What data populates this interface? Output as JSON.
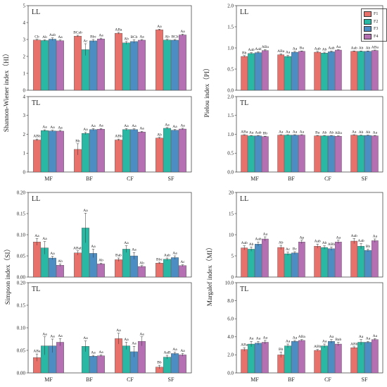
{
  "colors": {
    "F1": "#e8716c",
    "F2": "#29b8a4",
    "F3": "#4c8ec3",
    "F4": "#b570b4"
  },
  "legend": {
    "items": [
      "F1",
      "F2",
      "F3",
      "F4"
    ],
    "placement": "top-right"
  },
  "axis_labels": {
    "shannon": "Shannon-Wiener index（HI）",
    "pielou": "Pielou index（PI）",
    "simpson": "Simpson index（SI）",
    "margalef": "Margalef index（MI）"
  },
  "chart_data": [
    {
      "id": "hi-ll",
      "type": "bar",
      "panel_label": "LL",
      "categories": [
        "MF",
        "BF",
        "CF",
        "SF"
      ],
      "ylim": [
        0,
        5
      ],
      "yticks": [
        "0",
        "1",
        "2",
        "3",
        "4",
        "5"
      ],
      "show_xlabels": false,
      "series": [
        {
          "name": "F1",
          "values": [
            2.97,
            3.2,
            3.37,
            3.57
          ],
          "errors": [
            0.04,
            0.05,
            0.05,
            0.04
          ]
        },
        {
          "name": "F2",
          "values": [
            2.94,
            2.4,
            2.8,
            2.97
          ],
          "errors": [
            0.04,
            0.35,
            0.08,
            0.04
          ]
        },
        {
          "name": "F3",
          "values": [
            3.02,
            2.92,
            2.88,
            2.96
          ],
          "errors": [
            0.08,
            0.08,
            0.1,
            0.04
          ]
        },
        {
          "name": "F4",
          "values": [
            2.93,
            3.03,
            2.96,
            3.27
          ],
          "errors": [
            0.04,
            0.05,
            0.04,
            0.05
          ]
        }
      ],
      "annotations": [
        [
          "Cb",
          "Ab",
          "Aab",
          "Aa"
        ],
        [
          "BCab",
          "Ac",
          "Bbc",
          "Aa"
        ],
        [
          "ABa",
          "Ab",
          "BCb",
          "Aa"
        ],
        [
          "Aa",
          "Ab",
          "BCb",
          "Aa"
        ]
      ]
    },
    {
      "id": "pi-ll",
      "type": "bar",
      "panel_label": "LL",
      "categories": [
        "MF",
        "BF",
        "CF",
        "SF"
      ],
      "ylim": [
        0,
        2
      ],
      "yticks": [
        "0.0",
        "0.5",
        "1.0",
        "1.5",
        "2.0"
      ],
      "show_xlabels": false,
      "series": [
        {
          "name": "F1",
          "values": [
            0.8,
            0.84,
            0.9,
            0.92
          ],
          "errors": [
            0.02,
            0.02,
            0.02,
            0.01
          ]
        },
        {
          "name": "F2",
          "values": [
            0.87,
            0.8,
            0.88,
            0.92
          ],
          "errors": [
            0.02,
            0.03,
            0.02,
            0.01
          ]
        },
        {
          "name": "F3",
          "values": [
            0.89,
            0.9,
            0.91,
            0.92
          ],
          "errors": [
            0.02,
            0.02,
            0.02,
            0.01
          ]
        },
        {
          "name": "F4",
          "values": [
            0.94,
            0.92,
            0.95,
            0.94
          ],
          "errors": [
            0.02,
            0.01,
            0.01,
            0.01
          ]
        }
      ],
      "annotations": [
        [
          "Bb",
          "Aab",
          "Aab",
          "ABa"
        ],
        [
          "ABa",
          "Aa",
          "Aa",
          "Ba"
        ],
        [
          "Aab",
          "Ab",
          "Aab",
          "Aa"
        ],
        [
          "Aab",
          "Ab",
          "Ab",
          "ABa"
        ]
      ]
    },
    {
      "id": "hi-tl",
      "type": "bar",
      "panel_label": "TL",
      "categories": [
        "MF",
        "BF",
        "CF",
        "SF"
      ],
      "ylim": [
        0,
        4
      ],
      "yticks": [
        "0",
        "1",
        "2",
        "3",
        "4"
      ],
      "show_xlabels": true,
      "series": [
        {
          "name": "F1",
          "values": [
            1.7,
            1.2,
            1.7,
            1.8
          ],
          "errors": [
            0.05,
            0.3,
            0.05,
            0.04
          ]
        },
        {
          "name": "F2",
          "values": [
            2.2,
            2.05,
            2.25,
            2.32
          ],
          "errors": [
            0.04,
            0.06,
            0.05,
            0.04
          ]
        },
        {
          "name": "F3",
          "values": [
            2.18,
            2.25,
            2.25,
            2.22
          ],
          "errors": [
            0.04,
            0.05,
            0.04,
            0.04
          ]
        },
        {
          "name": "F4",
          "values": [
            2.17,
            2.27,
            2.12,
            2.28
          ],
          "errors": [
            0.04,
            0.04,
            0.04,
            0.04
          ]
        }
      ],
      "annotations": [
        [
          "ABb",
          "Aa",
          "Aa",
          "Aa"
        ],
        [
          "Bb",
          "Aa",
          "Aa",
          "Aa"
        ],
        [
          "ABb",
          "Aa",
          "Aa",
          "Aa"
        ],
        [
          "Ab",
          "Aa",
          "Aa",
          "Aa"
        ]
      ]
    },
    {
      "id": "pi-tl",
      "type": "bar",
      "panel_label": "TL",
      "categories": [
        "MF",
        "BF",
        "CF",
        "SF"
      ],
      "ylim": [
        0,
        2
      ],
      "yticks": [
        "0.0",
        "0.5",
        "1.0",
        "1.5",
        "2.0"
      ],
      "show_xlabels": true,
      "series": [
        {
          "name": "F1",
          "values": [
            0.98,
            0.98,
            0.96,
            0.98
          ],
          "errors": [
            0.01,
            0.01,
            0.01,
            0.01
          ]
        },
        {
          "name": "F2",
          "values": [
            0.96,
            0.98,
            0.96,
            0.97
          ],
          "errors": [
            0.01,
            0.01,
            0.01,
            0.01
          ]
        },
        {
          "name": "F3",
          "values": [
            0.96,
            0.98,
            0.96,
            0.97
          ],
          "errors": [
            0.01,
            0.01,
            0.01,
            0.01
          ]
        },
        {
          "name": "F4",
          "values": [
            0.94,
            0.98,
            0.95,
            0.96
          ],
          "errors": [
            0.01,
            0.01,
            0.01,
            0.01
          ]
        }
      ],
      "annotations": [
        [
          "ABa",
          "Aa",
          "Aab",
          "Bb"
        ],
        [
          "Aa",
          "Aa",
          "Aa",
          "Aa"
        ],
        [
          "Ba",
          "Ab",
          "Ab",
          "ABa"
        ],
        [
          "Aa",
          "Ab",
          "Ab",
          "Aa"
        ]
      ]
    },
    {
      "id": "si-ll",
      "type": "bar",
      "panel_label": "LL",
      "categories": [
        "MF",
        "BF",
        "CF",
        "SF"
      ],
      "ylim": [
        0,
        0.2
      ],
      "yticks": [
        "0.00",
        "0.05",
        "0.10",
        "0.15",
        "0.20"
      ],
      "show_xlabels": false,
      "series": [
        {
          "name": "F1",
          "values": [
            0.083,
            0.057,
            0.041,
            0.033
          ],
          "errors": [
            0.008,
            0.005,
            0.004,
            0.002
          ]
        },
        {
          "name": "F2",
          "values": [
            0.069,
            0.116,
            0.066,
            0.042
          ],
          "errors": [
            0.015,
            0.035,
            0.008,
            0.003
          ]
        },
        {
          "name": "F3",
          "values": [
            0.045,
            0.056,
            0.05,
            0.046
          ],
          "errors": [
            0.004,
            0.01,
            0.008,
            0.004
          ]
        },
        {
          "name": "F4",
          "values": [
            0.028,
            0.031,
            0.025,
            0.027
          ],
          "errors": [
            0.003,
            0.002,
            0.002,
            0.002
          ]
        }
      ],
      "annotations": [
        [
          "Aa",
          "Aa",
          "Aa",
          "Ab"
        ],
        [
          "ABab",
          "Aa",
          "Aa",
          "Ab"
        ],
        [
          "Bab",
          "Aa",
          "Aa",
          "Ab"
        ],
        [
          "Bbc",
          "Aab",
          "Aa",
          "Ac"
        ]
      ]
    },
    {
      "id": "mi-ll",
      "type": "bar",
      "panel_label": "LL",
      "categories": [
        "MF",
        "BF",
        "CF",
        "SF"
      ],
      "ylim": [
        0,
        20
      ],
      "yticks": [
        "0",
        "5",
        "10",
        "15",
        "20"
      ],
      "show_xlabels": false,
      "series": [
        {
          "name": "F1",
          "values": [
            6.9,
            7.0,
            7.3,
            8.5
          ],
          "errors": [
            0.5,
            0.5,
            0.5,
            0.6
          ]
        },
        {
          "name": "F2",
          "values": [
            6.6,
            5.5,
            7.0,
            7.3
          ],
          "errors": [
            0.5,
            0.4,
            0.4,
            0.6
          ]
        },
        {
          "name": "F3",
          "values": [
            7.8,
            5.7,
            6.7,
            6.3
          ],
          "errors": [
            0.5,
            0.3,
            0.4,
            0.3
          ]
        },
        {
          "name": "F4",
          "values": [
            9.0,
            8.3,
            8.3,
            8.6
          ],
          "errors": [
            0.5,
            0.4,
            0.4,
            0.4
          ]
        }
      ],
      "annotations": [
        [
          "Aab",
          "Ab",
          "Aab",
          "Aa"
        ],
        [
          "Ab",
          "Ac",
          "Bc",
          "Ap"
        ],
        [
          "Aab",
          "Ab",
          "ABb",
          "Aa"
        ],
        [
          "Aab",
          "Aab",
          "Bb",
          "Aa"
        ]
      ]
    },
    {
      "id": "si-tl",
      "type": "bar",
      "panel_label": "TL",
      "categories": [
        "MF",
        "BF",
        "CF",
        "SF"
      ],
      "ylim": [
        0,
        0.2
      ],
      "yticks": [
        "0.00",
        "0.05",
        "0.10",
        "0.15",
        "0.20"
      ],
      "show_xlabels": true,
      "series": [
        {
          "name": "F1",
          "values": [
            0.034,
            0.0,
            0.076,
            0.013
          ],
          "errors": [
            0.008,
            0.0,
            0.012,
            0.004
          ]
        },
        {
          "name": "F2",
          "values": [
            0.06,
            0.059,
            0.06,
            0.035
          ],
          "errors": [
            0.02,
            0.012,
            0.008,
            0.004
          ]
        },
        {
          "name": "F3",
          "values": [
            0.06,
            0.037,
            0.047,
            0.043
          ],
          "errors": [
            0.015,
            0.002,
            0.012,
            0.003
          ]
        },
        {
          "name": "F4",
          "values": [
            0.068,
            0.038,
            0.07,
            0.04
          ],
          "errors": [
            0.008,
            0.002,
            0.01,
            0.003
          ]
        }
      ],
      "annotations": [
        [
          "ABa",
          "Aa",
          "Aa",
          "Aa"
        ],
        [
          "",
          "Aa",
          "Aa",
          "Aa"
        ],
        [
          "Aa",
          "Aa",
          "Aa",
          "Aa"
        ],
        [
          "Bb",
          "AaB",
          "Aa",
          "Aa"
        ]
      ]
    },
    {
      "id": "mi-tl",
      "type": "bar",
      "panel_label": "TL",
      "categories": [
        "MF",
        "BF",
        "CF",
        "SF"
      ],
      "ylim": [
        0,
        10
      ],
      "yticks": [
        "0.0",
        "2.0",
        "4.0",
        "6.0",
        "8.0",
        "10.0"
      ],
      "show_xlabels": true,
      "series": [
        {
          "name": "F1",
          "values": [
            2.6,
            2.0,
            2.5,
            2.8
          ],
          "errors": [
            0.2,
            0.3,
            0.1,
            0.1
          ]
        },
        {
          "name": "F2",
          "values": [
            3.2,
            3.0,
            3.0,
            3.4
          ],
          "errors": [
            0.3,
            0.2,
            0.2,
            0.3
          ]
        },
        {
          "name": "F3",
          "values": [
            3.3,
            3.5,
            3.5,
            3.4
          ],
          "errors": [
            0.2,
            0.1,
            0.2,
            0.1
          ]
        },
        {
          "name": "F4",
          "values": [
            3.4,
            3.6,
            3.2,
            3.7
          ],
          "errors": [
            0.2,
            0.1,
            0.2,
            0.1
          ]
        }
      ],
      "annotations": [
        [
          "ABa",
          "Aa",
          "Aa",
          "Aa"
        ],
        [
          "Bb",
          "Aa",
          "Aa",
          "ABa"
        ],
        [
          "ABb",
          "Aa",
          "Aa",
          "Bab"
        ],
        [
          "ABb",
          "Aa",
          "Aa",
          "Aa"
        ]
      ]
    }
  ]
}
